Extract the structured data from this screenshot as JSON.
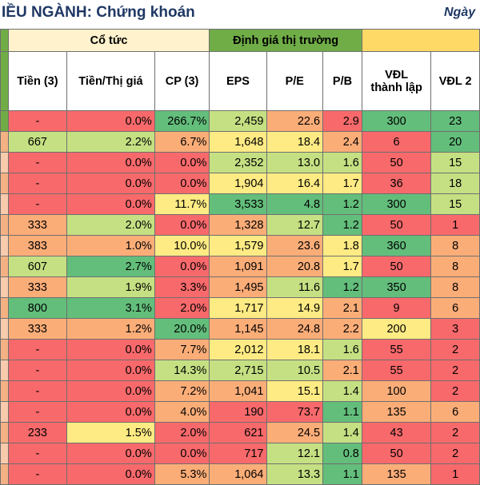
{
  "title": "IỀU NGÀNH: Chứng khoán",
  "date_label": "Ngày",
  "groups": {
    "co_tuc": "Cổ tức",
    "dinh_gia": "Định giá thị trường"
  },
  "headers": {
    "tien": "Tiền (3)",
    "tien_thi_gia": "Tiền/Thị giá",
    "cp": "CP (3)",
    "eps": "EPS",
    "pe": "P/E",
    "pb": "P/B",
    "vdl_tl_1": "VĐL",
    "vdl_tl_2": "thành lập",
    "vdl2": "VĐL 2"
  },
  "colors": {
    "red": "#f8696b",
    "orange": "#fbad78",
    "yellow": "#ffeb84",
    "light_green": "#c5e083",
    "green": "#63be7b",
    "header_green": "#70ad47",
    "header_light": "#a9d08e",
    "header_yellow": "#fff2cc"
  },
  "rows": [
    {
      "tien": "-",
      "tt": "0.0%",
      "cp": "266.7%",
      "eps": "2,459",
      "pe": "22.6",
      "pb": "2.9",
      "vdl": "300",
      "vdl2": "23"
    },
    {
      "tien": "667",
      "tt": "2.2%",
      "cp": "6.7%",
      "eps": "1,648",
      "pe": "18.4",
      "pb": "2.4",
      "vdl": "6",
      "vdl2": "20"
    },
    {
      "tien": "-",
      "tt": "0.0%",
      "cp": "0.0%",
      "eps": "2,352",
      "pe": "13.0",
      "pb": "1.6",
      "vdl": "50",
      "vdl2": "15"
    },
    {
      "tien": "-",
      "tt": "0.0%",
      "cp": "0.0%",
      "eps": "1,904",
      "pe": "16.4",
      "pb": "1.7",
      "vdl": "36",
      "vdl2": "18"
    },
    {
      "tien": "-",
      "tt": "0.0%",
      "cp": "11.7%",
      "eps": "3,533",
      "pe": "4.8",
      "pb": "1.2",
      "vdl": "300",
      "vdl2": "15"
    },
    {
      "tien": "333",
      "tt": "2.0%",
      "cp": "0.0%",
      "eps": "1,328",
      "pe": "12.7",
      "pb": "1.2",
      "vdl": "50",
      "vdl2": "1"
    },
    {
      "tien": "383",
      "tt": "1.0%",
      "cp": "10.0%",
      "eps": "1,579",
      "pe": "23.6",
      "pb": "1.8",
      "vdl": "360",
      "vdl2": "8"
    },
    {
      "tien": "607",
      "tt": "2.7%",
      "cp": "0.0%",
      "eps": "1,091",
      "pe": "20.8",
      "pb": "1.7",
      "vdl": "50",
      "vdl2": "8"
    },
    {
      "tien": "333",
      "tt": "1.9%",
      "cp": "3.3%",
      "eps": "1,495",
      "pe": "11.6",
      "pb": "1.2",
      "vdl": "350",
      "vdl2": "8"
    },
    {
      "tien": "800",
      "tt": "3.1%",
      "cp": "2.0%",
      "eps": "1,717",
      "pe": "14.9",
      "pb": "2.1",
      "vdl": "9",
      "vdl2": "6"
    },
    {
      "tien": "333",
      "tt": "1.2%",
      "cp": "20.0%",
      "eps": "1,145",
      "pe": "24.8",
      "pb": "2.2",
      "vdl": "200",
      "vdl2": "3"
    },
    {
      "tien": "-",
      "tt": "0.0%",
      "cp": "7.7%",
      "eps": "2,012",
      "pe": "18.1",
      "pb": "1.6",
      "vdl": "55",
      "vdl2": "2"
    },
    {
      "tien": "-",
      "tt": "0.0%",
      "cp": "14.3%",
      "eps": "2,715",
      "pe": "10.5",
      "pb": "2.1",
      "vdl": "55",
      "vdl2": "2"
    },
    {
      "tien": "-",
      "tt": "0.0%",
      "cp": "7.2%",
      "eps": "1,041",
      "pe": "15.1",
      "pb": "1.4",
      "vdl": "100",
      "vdl2": "2"
    },
    {
      "tien": "-",
      "tt": "0.0%",
      "cp": "4.0%",
      "eps": "190",
      "pe": "73.7",
      "pb": "1.1",
      "vdl": "135",
      "vdl2": "6"
    },
    {
      "tien": "233",
      "tt": "1.5%",
      "cp": "2.0%",
      "eps": "621",
      "pe": "24.5",
      "pb": "1.4",
      "vdl": "43",
      "vdl2": "2"
    },
    {
      "tien": "-",
      "tt": "0.0%",
      "cp": "0.0%",
      "eps": "717",
      "pe": "12.1",
      "pb": "0.8",
      "vdl": "50",
      "vdl2": "2"
    },
    {
      "tien": "-",
      "tt": "0.0%",
      "cp": "5.3%",
      "eps": "1,064",
      "pe": "13.3",
      "pb": "1.1",
      "vdl": "135",
      "vdl2": "1"
    }
  ]
}
